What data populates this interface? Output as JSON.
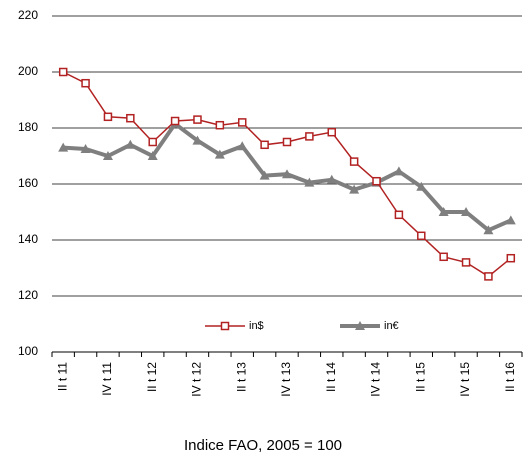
{
  "chart_data": {
    "type": "line",
    "xlabel": "Indice FAO, 2005 = 100",
    "categories": [
      "II t 11",
      null,
      "IV t 11",
      null,
      "II t 12",
      null,
      "IV t 12",
      null,
      "II t 13",
      null,
      "IV t 13",
      null,
      "II t 14",
      null,
      "IV t 14",
      null,
      "II t 15",
      null,
      "IV t 15",
      null,
      "II t 16"
    ],
    "series": [
      {
        "name": "in$",
        "color": "#b22222",
        "values": [
          200,
          196,
          184,
          183.5,
          175,
          182.5,
          183,
          181,
          182,
          174,
          175,
          177,
          178.5,
          168,
          161,
          149,
          141.5,
          134,
          132,
          127,
          133.5
        ]
      },
      {
        "name": "in€",
        "color": "#7f7f7f",
        "values": [
          173,
          172.5,
          170,
          174,
          170,
          181.5,
          175.5,
          170.5,
          173.5,
          163,
          163.5,
          160.5,
          161.5,
          158,
          160.5,
          164.5,
          159,
          150,
          150,
          143.5,
          147
        ]
      }
    ],
    "ylim": [
      100,
      220
    ],
    "yticks": [
      100,
      120,
      140,
      160,
      180,
      200,
      220
    ],
    "grid": true
  }
}
